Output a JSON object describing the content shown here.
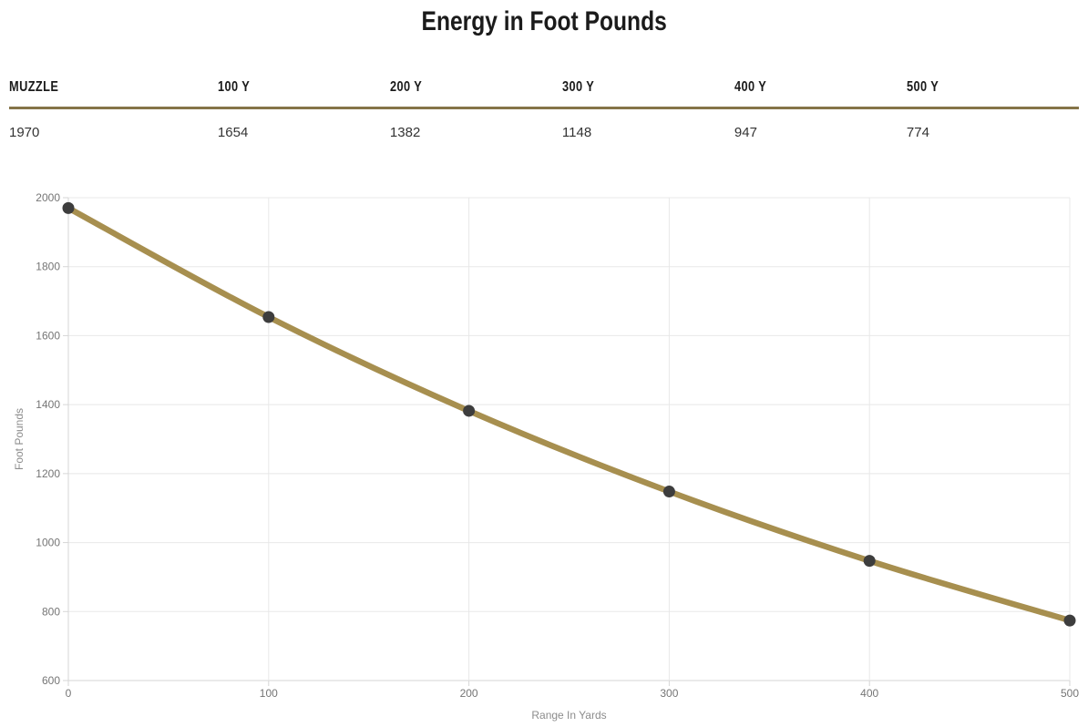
{
  "page": {
    "title": "Energy in Foot Pounds"
  },
  "table": {
    "headers": [
      "MUZZLE",
      "100 Y",
      "200 Y",
      "300 Y",
      "400 Y",
      "500 Y"
    ],
    "values": [
      "1970",
      "1654",
      "1382",
      "1148",
      "947",
      "774"
    ]
  },
  "chart_data": {
    "type": "line",
    "title": "Energy in Foot Pounds",
    "xlabel": "Range In Yards",
    "ylabel": "Foot Pounds",
    "x": [
      0,
      100,
      200,
      300,
      400,
      500
    ],
    "series": [
      {
        "name": "Energy in Foot Pounds",
        "values": [
          1970,
          1654,
          1382,
          1148,
          947,
          774
        ]
      }
    ],
    "xlim": [
      0,
      500
    ],
    "ylim": [
      600,
      2000
    ],
    "x_ticks": [
      0,
      100,
      200,
      300,
      400,
      500
    ],
    "y_ticks": [
      600,
      800,
      1000,
      1200,
      1400,
      1600,
      1800,
      2000
    ],
    "grid": true,
    "legend_position": "none",
    "line_color": "#a78f4f",
    "point_color": "#3d3d3d"
  },
  "colors": {
    "accent_gold": "#a78f4f",
    "table_rule": "#857448",
    "marker": "#3d3d3d",
    "grid": "#e8e8e8",
    "axis": "#d6d6d6",
    "tick_text": "#757575",
    "axis_title_text": "#8c8c8c",
    "heading_text": "#1b1b1b"
  }
}
